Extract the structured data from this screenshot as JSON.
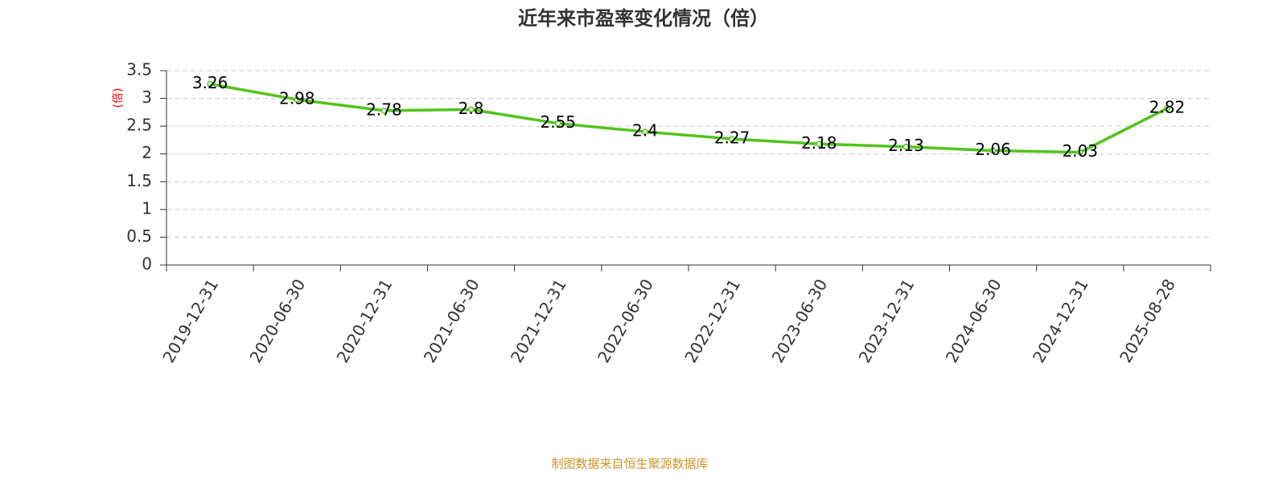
{
  "chart_data": {
    "type": "line",
    "title": "近年来市盈率变化情况（倍）",
    "y_label": "(倍)",
    "source": "制图数据来自恒生聚源数据库",
    "categories": [
      "2019-12-31",
      "2020-06-30",
      "2020-12-31",
      "2021-06-30",
      "2021-12-31",
      "2022-06-30",
      "2022-12-31",
      "2023-06-30",
      "2023-12-31",
      "2024-06-30",
      "2024-12-31",
      "2025-08-28"
    ],
    "values": [
      3.26,
      2.98,
      2.78,
      2.8,
      2.55,
      2.4,
      2.27,
      2.18,
      2.13,
      2.06,
      2.03,
      2.82
    ],
    "color": "#52c41a",
    "ylim": [
      0,
      3.5
    ],
    "yticks": [
      0,
      0.5,
      1,
      1.5,
      2,
      2.5,
      3,
      3.5
    ],
    "grid": true
  }
}
